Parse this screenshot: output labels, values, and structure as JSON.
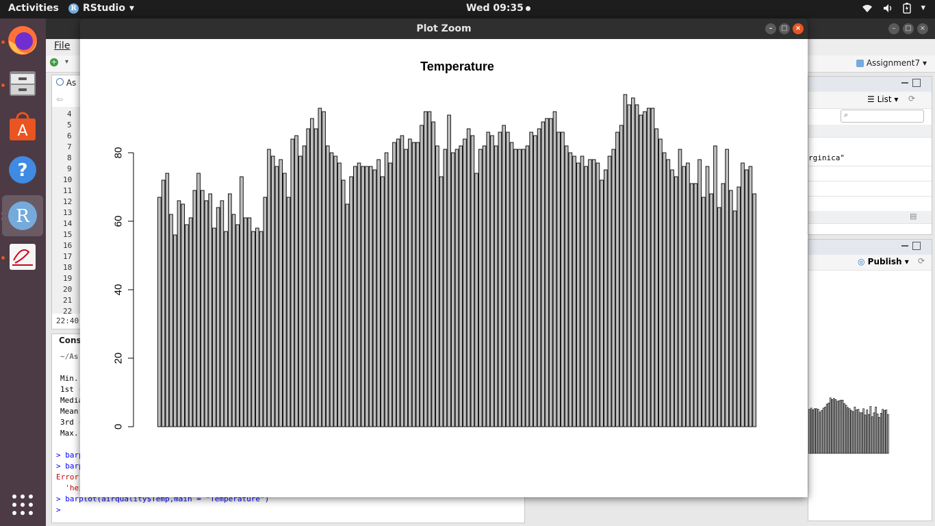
{
  "topbar": {
    "activities": "Activities",
    "app_name": "RStudio",
    "app_icon_letter": "R",
    "clock": "Wed 09:35"
  },
  "dock": {
    "items": [
      "firefox-icon",
      "files-icon",
      "software-center-icon",
      "help-icon",
      "rstudio-icon",
      "document-viewer-icon",
      "app-grid-icon"
    ]
  },
  "rstudio": {
    "menu_file": "File",
    "project": "Assignment7",
    "editor_tab": "As",
    "line_numbers": [
      "4",
      "5",
      "6",
      "7",
      "8",
      "9",
      "10",
      "11",
      "12",
      "13",
      "14",
      "15",
      "16",
      "17",
      "18",
      "19",
      "20",
      "21",
      "22"
    ],
    "editor_status": "22:40",
    "console_tab": "Conso",
    "console_path": "~/As",
    "console_summary": [
      "Min.",
      "1st (",
      "Media",
      "Mean",
      "3rd (",
      "Max."
    ],
    "console_cmd1": "> barp",
    "console_cmd2": "> barp",
    "console_error": "Error",
    "console_error2": "  'hei",
    "console_cmd3": "> barplot(airquality$Temp,main = \"Temperature\")",
    "console_prompt": ">",
    "env_list_label": "List",
    "env_text": "rginica\"",
    "publish_label": "Publish"
  },
  "plot_window": {
    "title": "Plot Zoom"
  },
  "chart_data": {
    "type": "bar",
    "title": "Temperature",
    "xlabel": "",
    "ylabel": "",
    "ylim": [
      0,
      100
    ],
    "yticks": [
      "0",
      "20",
      "40",
      "60",
      "80"
    ],
    "bar_fill": "#bebebe",
    "bar_stroke": "#000000",
    "values": [
      67,
      72,
      74,
      62,
      56,
      66,
      65,
      59,
      61,
      69,
      74,
      69,
      66,
      68,
      58,
      64,
      66,
      57,
      68,
      62,
      59,
      73,
      61,
      61,
      57,
      58,
      57,
      67,
      81,
      79,
      76,
      78,
      74,
      67,
      84,
      85,
      79,
      82,
      87,
      90,
      87,
      93,
      92,
      82,
      80,
      79,
      77,
      72,
      65,
      73,
      76,
      77,
      76,
      76,
      76,
      75,
      78,
      73,
      80,
      77,
      83,
      84,
      85,
      81,
      84,
      83,
      83,
      88,
      92,
      92,
      89,
      82,
      73,
      81,
      91,
      80,
      81,
      82,
      84,
      87,
      85,
      74,
      81,
      82,
      86,
      85,
      82,
      86,
      88,
      86,
      83,
      81,
      81,
      81,
      82,
      86,
      85,
      87,
      89,
      90,
      90,
      92,
      86,
      86,
      82,
      80,
      79,
      77,
      79,
      76,
      78,
      78,
      77,
      72,
      75,
      79,
      81,
      86,
      88,
      97,
      94,
      96,
      94,
      91,
      92,
      93,
      93,
      87,
      84,
      80,
      78,
      75,
      73,
      81,
      76,
      77,
      71,
      71,
      78,
      67,
      76,
      68,
      82,
      64,
      71,
      81,
      69,
      63,
      70,
      77,
      75,
      76,
      68
    ]
  }
}
